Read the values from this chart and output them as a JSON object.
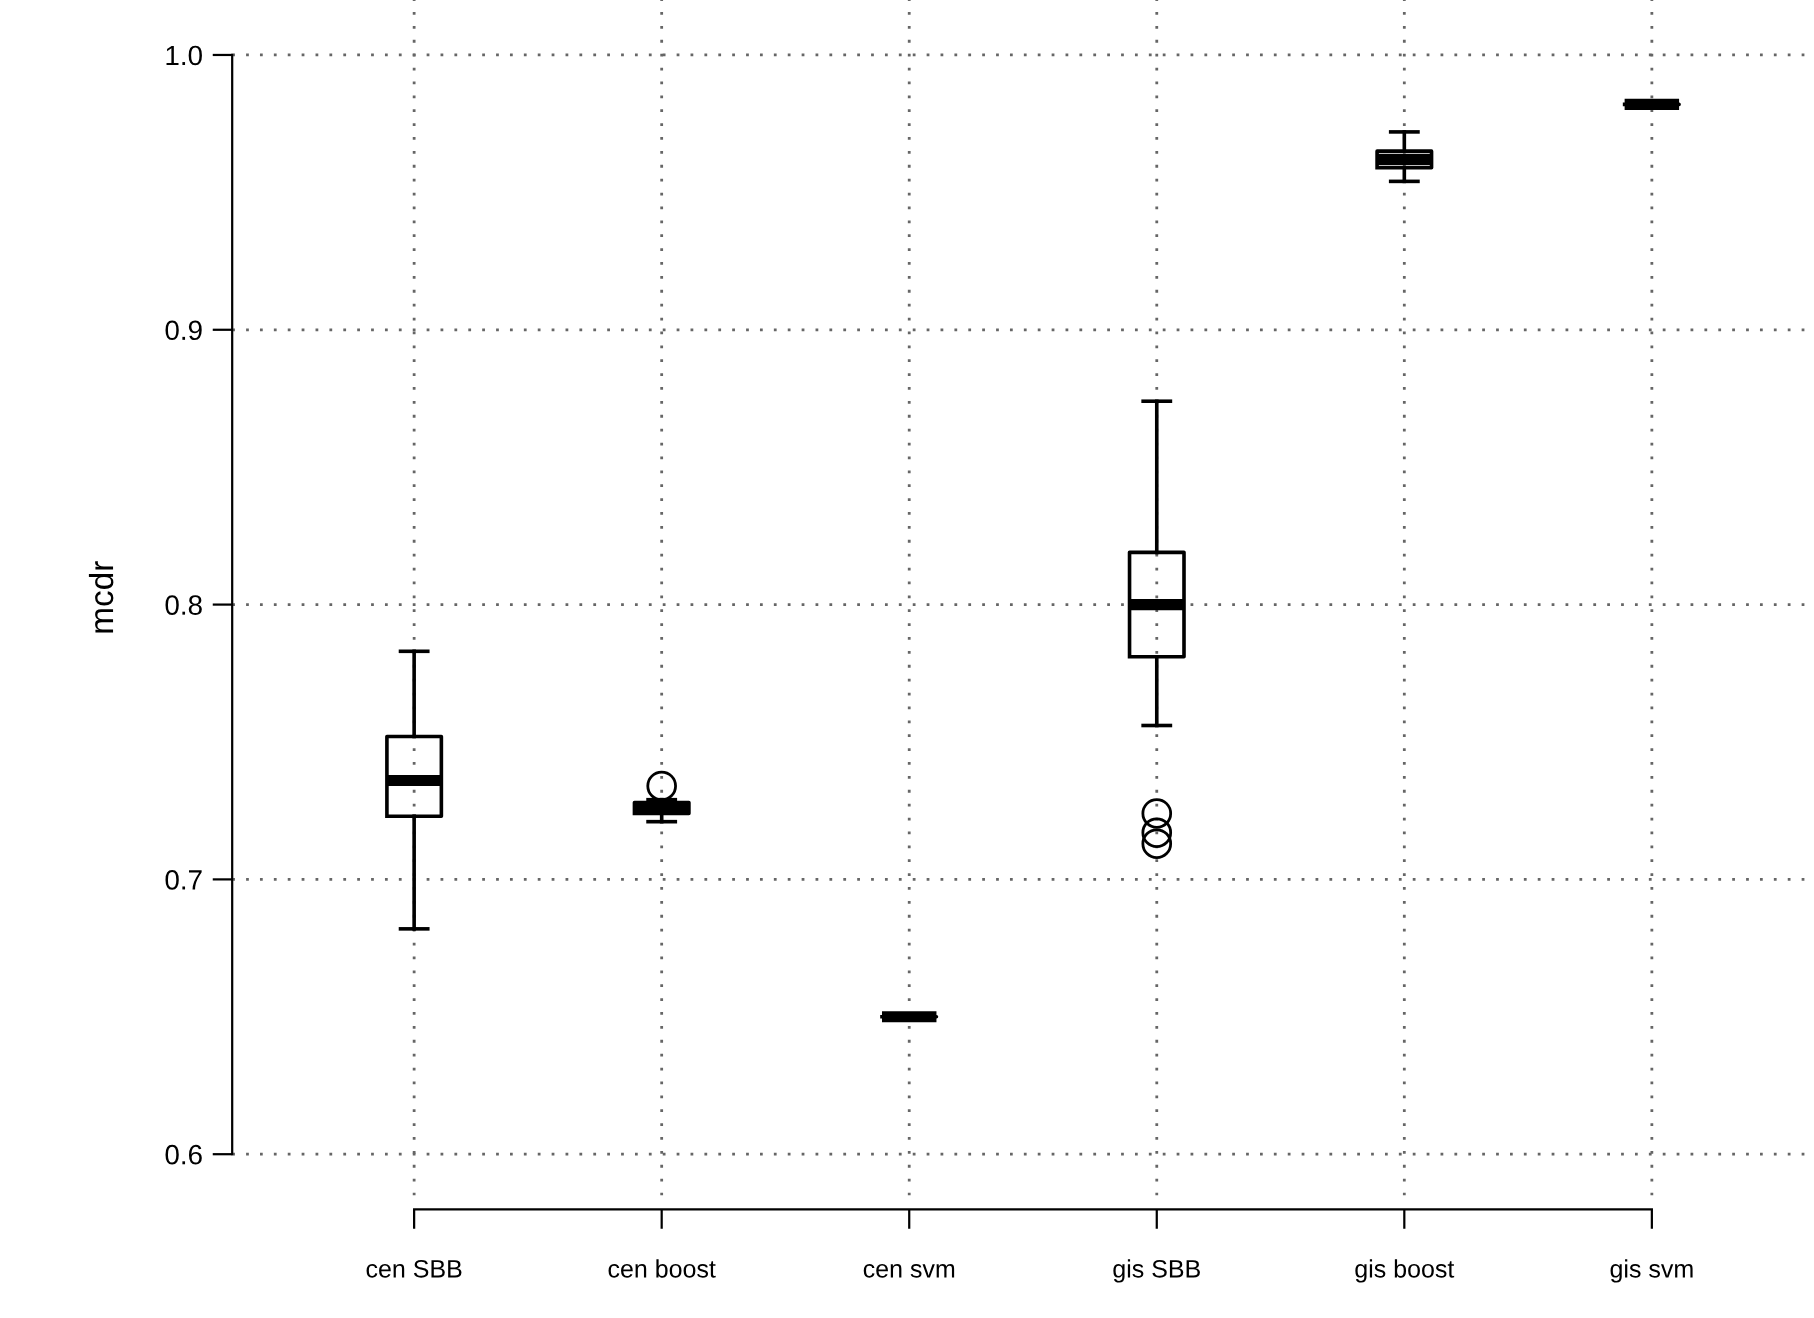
{
  "chart_data": {
    "type": "box",
    "ylabel": "mcdr",
    "categories": [
      "cen SBB",
      "cen boost",
      "cen svm",
      "gis SBB",
      "gis boost",
      "gis svm"
    ],
    "boxes": [
      {
        "low": 0.682,
        "q1": 0.723,
        "median": 0.736,
        "q3": 0.752,
        "high": 0.783
      },
      {
        "low": 0.721,
        "q1": 0.724,
        "median": 0.726,
        "q3": 0.728,
        "high": 0.729,
        "outliers": [
          0.734
        ]
      },
      {
        "low": 0.65,
        "q1": 0.65,
        "median": 0.65,
        "q3": 0.65,
        "high": 0.65
      },
      {
        "low": 0.756,
        "q1": 0.781,
        "median": 0.8,
        "q3": 0.819,
        "high": 0.874,
        "outliers": [
          0.724,
          0.717,
          0.713
        ]
      },
      {
        "low": 0.954,
        "q1": 0.959,
        "median": 0.962,
        "q3": 0.965,
        "high": 0.972
      },
      {
        "low": 0.982,
        "q1": 0.982,
        "median": 0.982,
        "q3": 0.982,
        "high": 0.982
      }
    ],
    "color": "#000000",
    "ylim": [
      0.585,
      1.02
    ],
    "yticks": [
      0.6,
      0.7,
      0.8,
      0.9,
      {
        "value": 1.0,
        "label": "1.0"
      }
    ],
    "grid": true
  }
}
